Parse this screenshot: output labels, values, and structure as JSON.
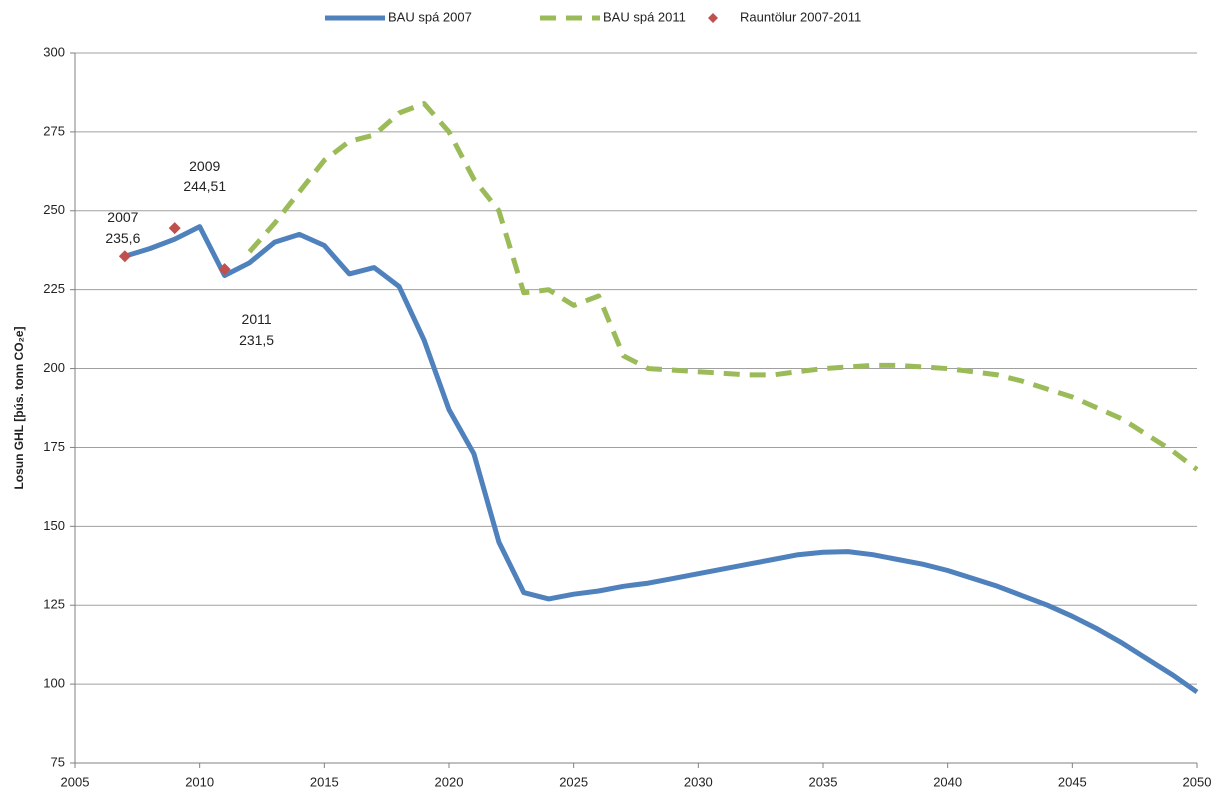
{
  "chart_data": {
    "type": "line",
    "ylabel": "Losun GHL [þús. tonn CO₂e]",
    "xlim": [
      2005,
      2050
    ],
    "xticks": [
      2005,
      2010,
      2015,
      2020,
      2025,
      2030,
      2035,
      2040,
      2045,
      2050
    ],
    "ylim": [
      75,
      300
    ],
    "yticks": [
      75,
      100,
      125,
      150,
      175,
      200,
      225,
      250,
      275,
      300
    ],
    "grid": true,
    "legend": "top",
    "x": [
      2007,
      2008,
      2009,
      2010,
      2011,
      2012,
      2013,
      2014,
      2015,
      2016,
      2017,
      2018,
      2019,
      2020,
      2021,
      2022,
      2023,
      2024,
      2025,
      2026,
      2027,
      2028,
      2029,
      2030,
      2031,
      2032,
      2033,
      2034,
      2035,
      2036,
      2037,
      2038,
      2039,
      2040,
      2041,
      2042,
      2043,
      2044,
      2045,
      2046,
      2047,
      2048,
      2049,
      2050
    ],
    "series": [
      {
        "name": "BAU spá 2007",
        "color": "#4f81bd",
        "dashed": false,
        "values": [
          235.6,
          238,
          241,
          245,
          229.5,
          233.5,
          240,
          242.5,
          239,
          230,
          232,
          226,
          209,
          187,
          173,
          145,
          129,
          127,
          128.5,
          129.5,
          131,
          132,
          133.5,
          135,
          136.5,
          138,
          139.5,
          141,
          141.8,
          142,
          141,
          139.5,
          138,
          136,
          133.5,
          131,
          128,
          125,
          121.5,
          117.5,
          113,
          108,
          103,
          97.5
        ]
      },
      {
        "name": "BAU spá 2011",
        "color": "#9bbb59",
        "dashed": true,
        "values": [
          null,
          null,
          null,
          null,
          null,
          237,
          246,
          256,
          266,
          272,
          274,
          281,
          284,
          275,
          260,
          250,
          224,
          225,
          220,
          223,
          204,
          200,
          199.5,
          199,
          198.5,
          198,
          198,
          199,
          200,
          200.5,
          201,
          201,
          200.5,
          200,
          199,
          198,
          196,
          193.5,
          191,
          187.5,
          184,
          179,
          174,
          168
        ]
      },
      {
        "name": "Rauntölur 2007-2011",
        "color": "#c0504d",
        "type": "scatter",
        "x": [
          2007,
          2009,
          2011
        ],
        "values": [
          235.6,
          244.51,
          231.5
        ],
        "value_labels": [
          "235,6",
          "244,51",
          "231,5"
        ]
      }
    ]
  }
}
